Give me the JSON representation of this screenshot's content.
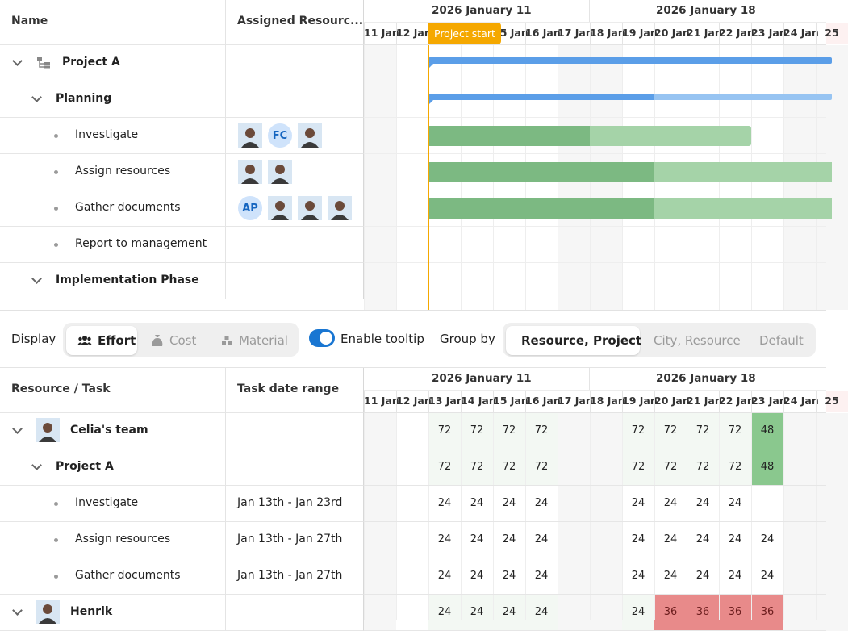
{
  "top_grid": {
    "col_name": "Name",
    "col_resources": "Assigned Resourc...",
    "rows": [
      {
        "label": "Project A",
        "level": 0
      },
      {
        "label": "Planning",
        "level": 1
      },
      {
        "label": "Investigate",
        "level": 2
      },
      {
        "label": "Assign resources",
        "level": 2
      },
      {
        "label": "Gather documents",
        "level": 2
      },
      {
        "label": "Report to management",
        "level": 2
      },
      {
        "label": "Implementation Phase",
        "level": 1
      }
    ],
    "avatars": {
      "investigate": [
        "photo",
        "FC",
        "photo"
      ],
      "assign": [
        "photo",
        "photo"
      ],
      "gather": [
        "AP",
        "photo",
        "photo",
        "photo"
      ]
    }
  },
  "timeline": {
    "weeks": [
      "2026 January 11",
      "2026 January 18"
    ],
    "days": [
      "11 Jan",
      "12 Jan",
      "13 Jan",
      "14 Jan",
      "15 Jan",
      "16 Jan",
      "17 Jan",
      "18 Jan",
      "19 Jan",
      "20 Jan",
      "21 Jan",
      "22 Jan",
      "23 Jan",
      "24 Jan",
      "25"
    ],
    "project_start_label": "Project start"
  },
  "toolbar": {
    "display_label": "Display",
    "effort": "Effort",
    "cost": "Cost",
    "material": "Material",
    "tooltip_label": "Enable tooltip",
    "group_by_label": "Group by",
    "group_resource_project": "Resource, Project",
    "group_city_resource": "City, Resource",
    "group_default": "Default"
  },
  "bottom_grid": {
    "col_resource_task": "Resource / Task",
    "col_date_range": "Task date range",
    "rows": [
      {
        "label": "Celia's team",
        "range": "",
        "values": [
          "",
          "",
          "72",
          "72",
          "72",
          "72",
          "",
          "",
          "72",
          "72",
          "72",
          "72",
          "48",
          "",
          ""
        ]
      },
      {
        "label": "Project A",
        "range": "",
        "values": [
          "",
          "",
          "72",
          "72",
          "72",
          "72",
          "",
          "",
          "72",
          "72",
          "72",
          "72",
          "48",
          "",
          ""
        ]
      },
      {
        "label": "Investigate",
        "range": "Jan 13th - Jan 23rd",
        "values": [
          "",
          "",
          "24",
          "24",
          "24",
          "24",
          "",
          "",
          "24",
          "24",
          "24",
          "24",
          "",
          "",
          ""
        ]
      },
      {
        "label": "Assign resources",
        "range": "Jan 13th - Jan 27th",
        "values": [
          "",
          "",
          "24",
          "24",
          "24",
          "24",
          "",
          "",
          "24",
          "24",
          "24",
          "24",
          "24",
          "",
          ""
        ]
      },
      {
        "label": "Gather documents",
        "range": "Jan 13th - Jan 27th",
        "values": [
          "",
          "",
          "24",
          "24",
          "24",
          "24",
          "",
          "",
          "24",
          "24",
          "24",
          "24",
          "24",
          "",
          ""
        ]
      },
      {
        "label": "Henrik",
        "range": "",
        "values": [
          "",
          "",
          "24",
          "24",
          "24",
          "24",
          "",
          "",
          "24",
          "36",
          "36",
          "36",
          "36",
          "",
          ""
        ]
      }
    ]
  },
  "colors": {
    "accent": "#1976d2",
    "project_bar": "#5b9ee8",
    "task_done": "#7cb982",
    "task_todo": "#a5d3a8",
    "start_line": "#f5a800",
    "over_allocated": "#e88a8a",
    "full_allocated": "#8ac88e"
  }
}
